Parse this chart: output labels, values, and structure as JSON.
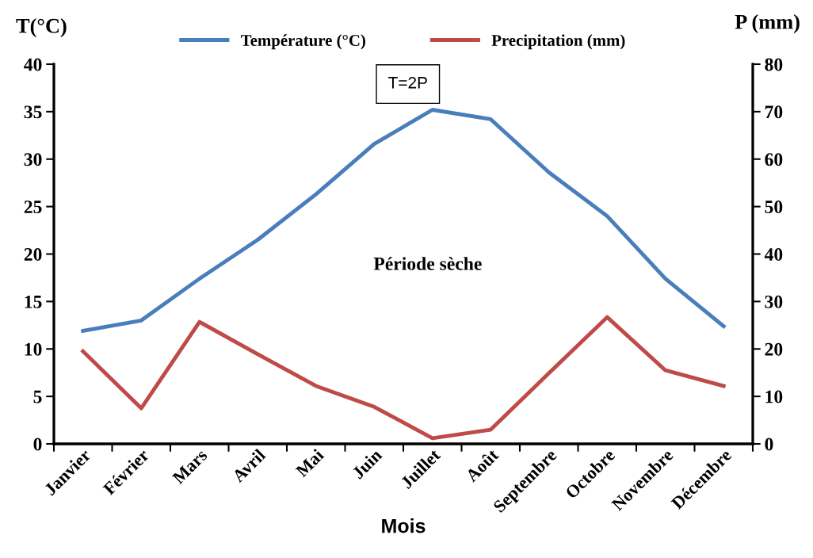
{
  "chart_data": {
    "type": "line",
    "categories": [
      "Janvier",
      "Février",
      "Mars",
      "Avril",
      "Mai",
      "Juin",
      "Juillet",
      "Août",
      "Septembre",
      "Octobre",
      "Novembre",
      "Décembre"
    ],
    "series": [
      {
        "name": "Température (°C)",
        "color": "#4a7ebb",
        "values": [
          11.9,
          13.0,
          17.4,
          21.5,
          26.3,
          31.6,
          35.2,
          34.2,
          28.6,
          24.0,
          17.4,
          12.4
        ]
      },
      {
        "name": "Precipitation (mm)",
        "color": "#be4b48",
        "axis": "y2",
        "values": [
          19.5,
          7.5,
          25.7,
          18.9,
          12.2,
          7.8,
          1.2,
          3.0,
          14.9,
          26.7,
          15.5,
          12.2
        ]
      }
    ],
    "xlabel": "Mois",
    "ylabel": "T(°C)",
    "y2label": "P (mm)",
    "ylim": [
      0,
      40
    ],
    "yticks": [
      0,
      5,
      10,
      15,
      20,
      25,
      30,
      35,
      40
    ],
    "y2lim": [
      0,
      80
    ],
    "y2ticks": [
      0,
      10,
      20,
      30,
      40,
      50,
      60,
      70,
      80
    ],
    "annotations": [
      "T=2P",
      "Période sèche"
    ],
    "legend": "top",
    "grid": false,
    "marker": "none",
    "line_style": "solid"
  }
}
